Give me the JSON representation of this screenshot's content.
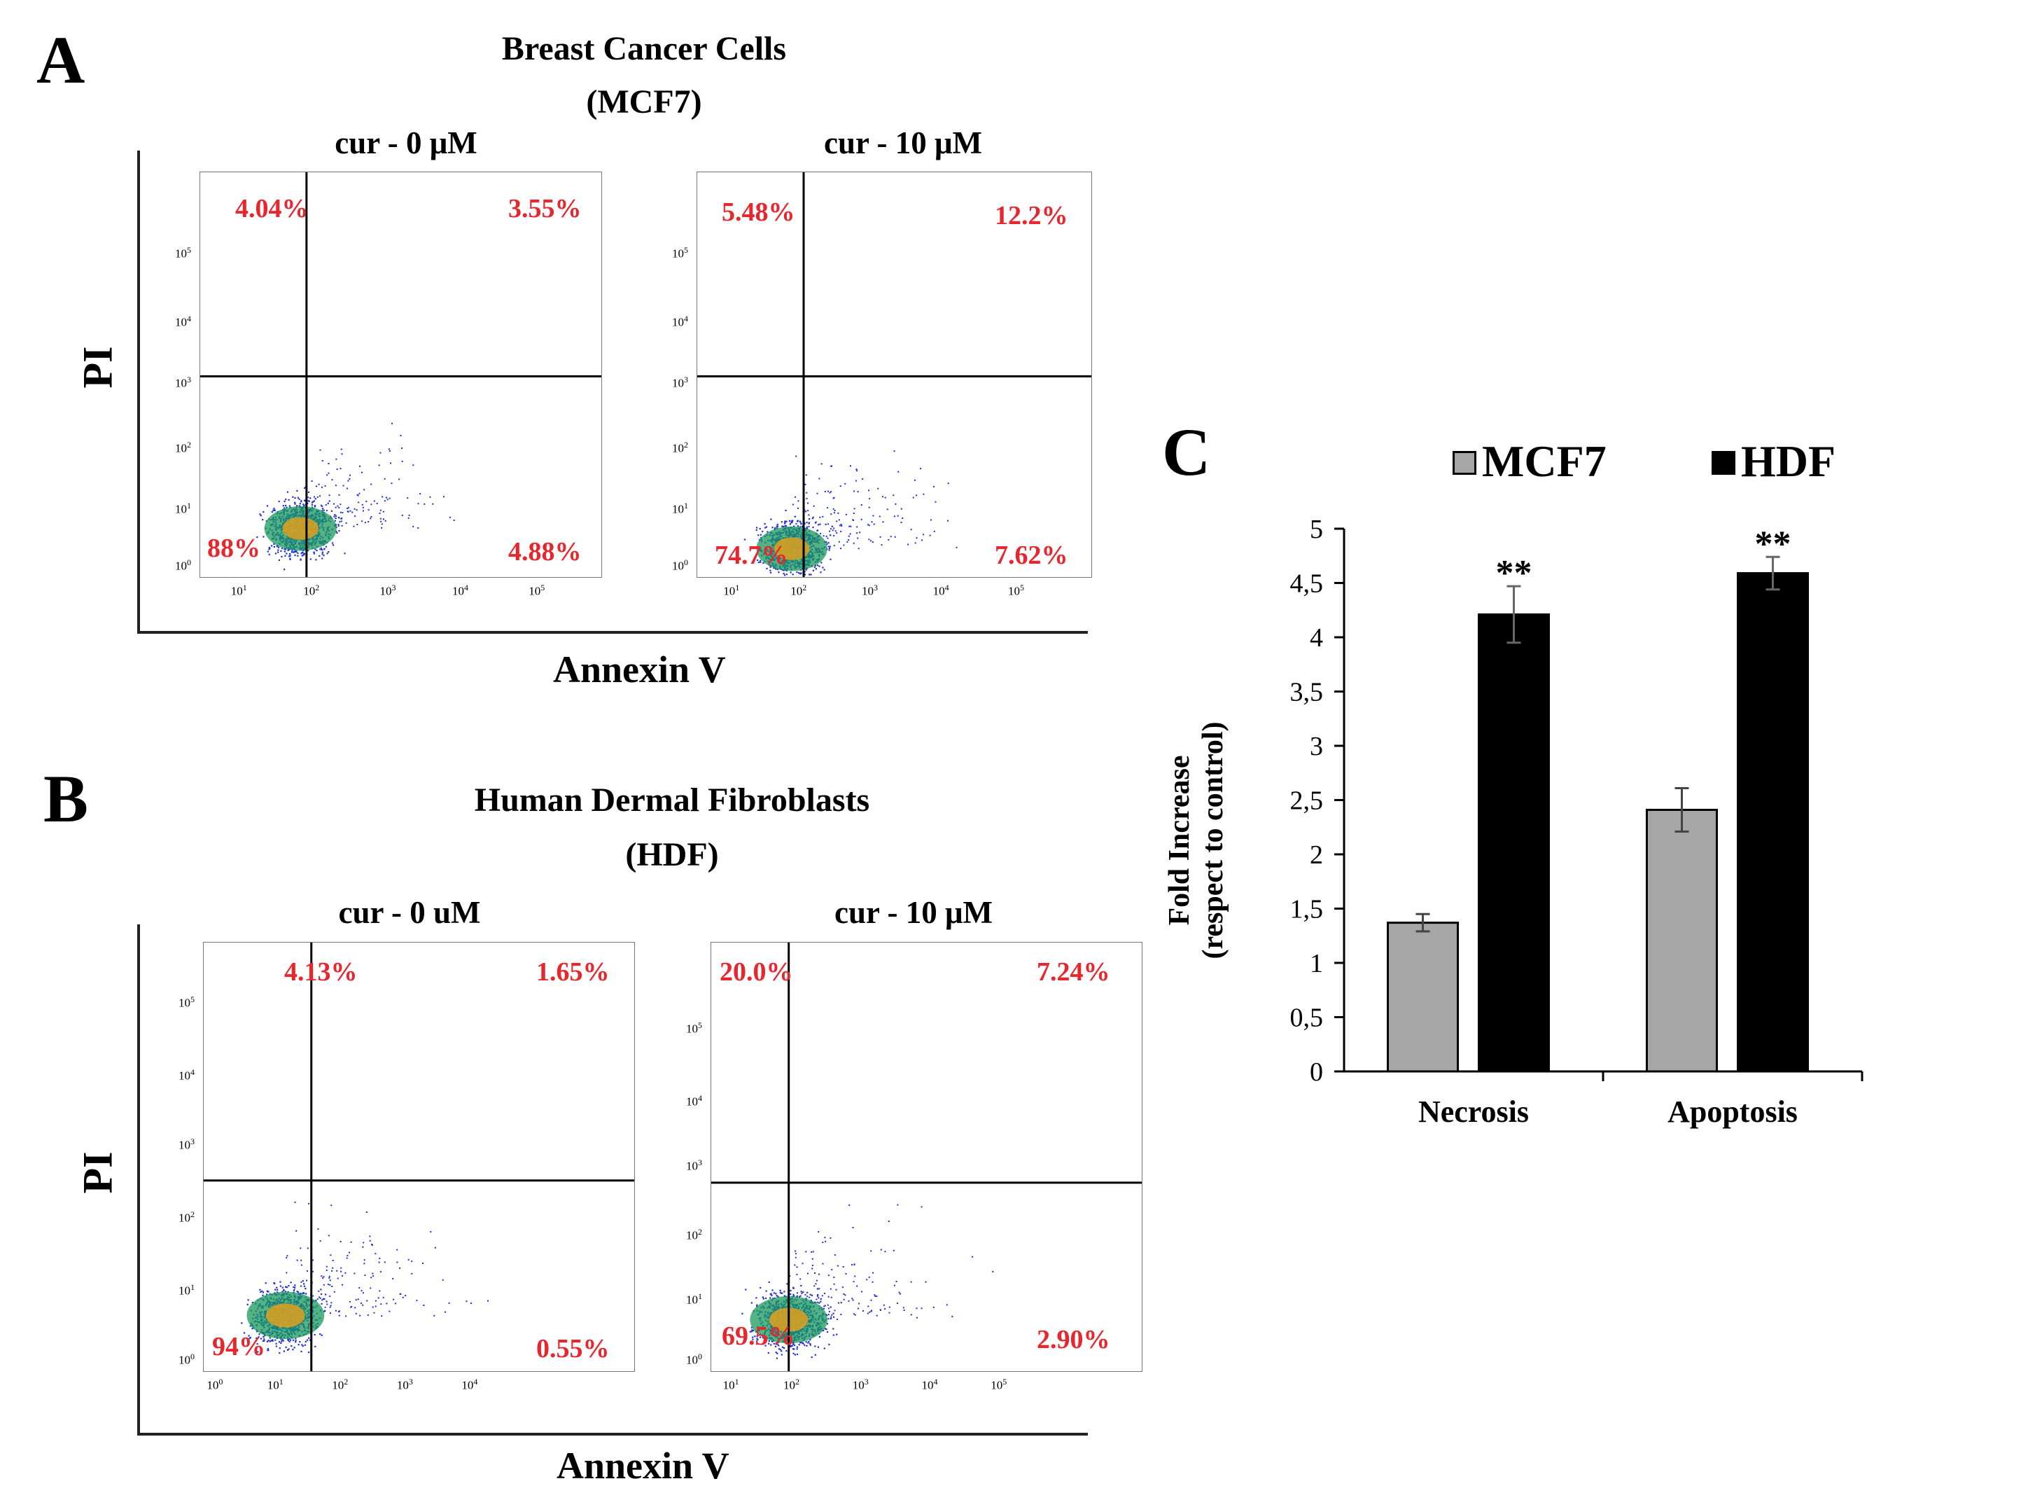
{
  "panels": {
    "A": {
      "letter": "A",
      "title_line1": "Breast Cancer Cells",
      "title_line2": "(MCF7)",
      "x_axis_label": "Annexin V",
      "y_axis_label": "PI",
      "plots": [
        {
          "condition": "cur - 0 μM",
          "q_ul": "4.04%",
          "q_ur": "3.55%",
          "q_ll": "88%",
          "q_lr": "4.88%"
        },
        {
          "condition": "cur - 10 μM",
          "q_ul": "5.48%",
          "q_ur": "12.2%",
          "q_ll": "74.7%",
          "q_lr": "7.62%"
        }
      ]
    },
    "B": {
      "letter": "B",
      "title_line1": "Human Dermal Fibroblasts",
      "title_line2": "(HDF)",
      "x_axis_label": "Annexin V",
      "y_axis_label": "PI",
      "plots": [
        {
          "condition": "cur - 0 uM",
          "q_ul": "4.13%",
          "q_ur": "1.65%",
          "q_ll": "94%",
          "q_lr": "0.55%"
        },
        {
          "condition": "cur - 10 μM",
          "q_ul": "20.0%",
          "q_ur": "7.24%",
          "q_ll": "69.5%",
          "q_lr": "2.90%"
        }
      ]
    },
    "C": {
      "letter": "C"
    }
  },
  "flow_ticks": {
    "exp_labels": [
      "10",
      "10",
      "10",
      "10",
      "10"
    ],
    "exponents": [
      "1",
      "2",
      "3",
      "4",
      "5"
    ],
    "exponents_from0": [
      "0",
      "1",
      "2",
      "3",
      "4",
      "5"
    ]
  },
  "colors": {
    "mcf7": "#a6a6a6",
    "hdf": "#000000",
    "percent": "#e8262d",
    "dots": "#1f2fd6"
  },
  "chart_data": {
    "type": "bar",
    "categories": [
      "Necrosis",
      "Apoptosis"
    ],
    "series": [
      {
        "name": "MCF7",
        "values": [
          1.37,
          2.41
        ],
        "errors": [
          0.08,
          0.2
        ]
      },
      {
        "name": "HDF",
        "values": [
          4.21,
          4.59
        ],
        "errors": [
          0.26,
          0.15
        ]
      }
    ],
    "significance": [
      "**",
      "**"
    ],
    "ylabel_line1": "Fold Increase",
    "ylabel_line2": "(respect to control)",
    "ylim": [
      0,
      5
    ],
    "yticks": [
      "0",
      "0,5",
      "1",
      "1,5",
      "2",
      "2,5",
      "3",
      "3,5",
      "4",
      "4,5",
      "5"
    ],
    "legend": [
      "MCF7",
      "HDF"
    ],
    "legend_position": "top"
  }
}
